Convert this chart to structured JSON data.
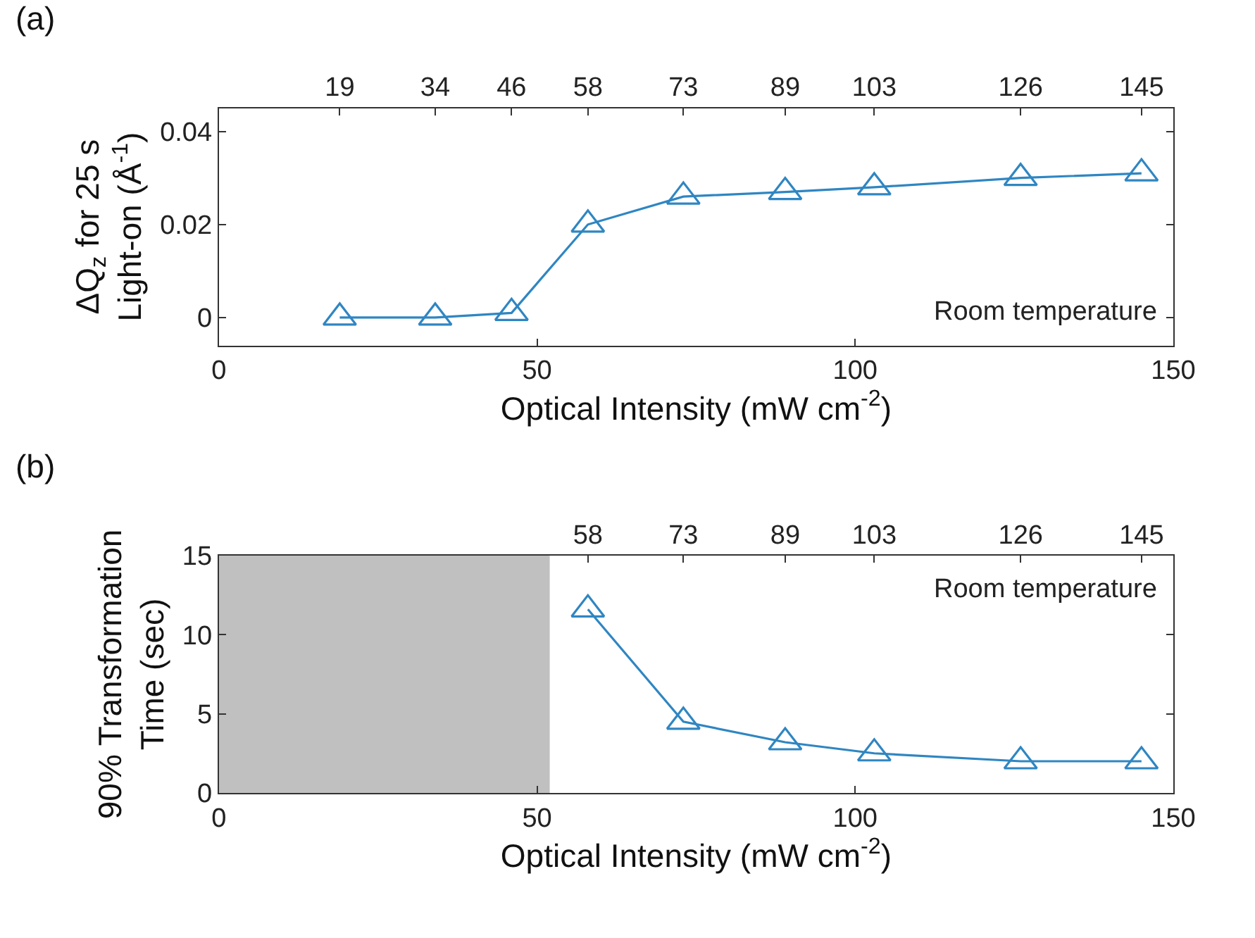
{
  "chart_data": [
    {
      "type": "line",
      "title": "(a)",
      "xlabel": "Optical Intensity (mW cm$^{-2}$)",
      "ylabel": "ΔQ$_{z}$ for 25 s\nLight-on (Å$^{-1}$)",
      "x": [
        19,
        34,
        46,
        58,
        73,
        89,
        103,
        126,
        145
      ],
      "series": [
        {
          "color": "#2f86c2",
          "values": [
            0,
            0,
            0.001,
            0.02,
            0.026,
            0.027,
            0.028,
            0.03,
            0.031
          ]
        }
      ],
      "xlim": [
        0,
        150
      ],
      "xticks": [
        0,
        50,
        100,
        150
      ],
      "ylim": [
        -0.006,
        0.045
      ],
      "yticks": [
        0,
        0.02,
        0.04
      ],
      "x2lim": [
        0,
        150
      ],
      "x2ticks": [
        19,
        34,
        46,
        58,
        73,
        89,
        103,
        126,
        145
      ],
      "annotations": [
        "Room temperature"
      ],
      "marker": "triangle",
      "line_style": "solid",
      "grid": false
    },
    {
      "type": "line",
      "title": "(b)",
      "xlabel": "Optical Intensity (mW cm$^{-2}$)",
      "ylabel": "90% Transformation\nTime (sec)",
      "x": [
        58,
        73,
        89,
        103,
        126,
        145
      ],
      "series": [
        {
          "color": "#2f86c2",
          "values": [
            11.6,
            4.5,
            3.2,
            2.5,
            2.0,
            2.0
          ]
        }
      ],
      "xlim": [
        0,
        150
      ],
      "xticks": [
        0,
        50,
        100,
        150
      ],
      "ylim": [
        0,
        15
      ],
      "yticks": [
        0,
        5,
        10,
        15
      ],
      "x2lim": [
        0,
        150
      ],
      "x2ticks": [
        58,
        73,
        89,
        103,
        126,
        145
      ],
      "bands": [
        {
          "axis": "x",
          "from": 0,
          "to": 52,
          "color": "#c0c0c0"
        }
      ],
      "annotations": [
        "Room temperature"
      ],
      "marker": "triangle",
      "line_style": "solid",
      "grid": false
    }
  ]
}
